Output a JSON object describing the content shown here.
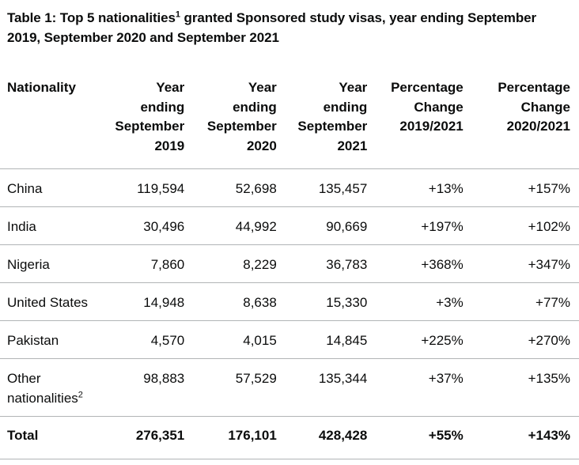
{
  "caption": {
    "before": "Table 1: Top 5 nationalities",
    "footnote": "1",
    "after": " granted Sponsored study visas, year ending September 2019, September 2020 and September 2021"
  },
  "headers": {
    "nationality": "Nationality",
    "y2019": [
      "Year",
      "ending",
      "September",
      "2019"
    ],
    "y2020": [
      "Year",
      "ending",
      "September",
      "2020"
    ],
    "y2021": [
      "Year",
      "ending",
      "September",
      "2021"
    ],
    "pc1921": [
      "Percentage",
      "Change",
      "2019/2021"
    ],
    "pc2021": [
      "Percentage",
      "Change",
      "2020/2021"
    ]
  },
  "rows": [
    {
      "nationality": "China",
      "y2019": "119,594",
      "y2020": "52,698",
      "y2021": "135,457",
      "pc1921": "+13%",
      "pc2021": "+157%"
    },
    {
      "nationality": "India",
      "y2019": "30,496",
      "y2020": "44,992",
      "y2021": "90,669",
      "pc1921": "+197%",
      "pc2021": "+102%"
    },
    {
      "nationality": "Nigeria",
      "y2019": "7,860",
      "y2020": "8,229",
      "y2021": "36,783",
      "pc1921": "+368%",
      "pc2021": "+347%"
    },
    {
      "nationality": "United States",
      "y2019": "14,948",
      "y2020": "8,638",
      "y2021": "15,330",
      "pc1921": "+3%",
      "pc2021": "+77%"
    },
    {
      "nationality": "Pakistan",
      "y2019": "4,570",
      "y2020": "4,015",
      "y2021": "14,845",
      "pc1921": "+225%",
      "pc2021": "+270%"
    },
    {
      "nationality": "Other nationalities",
      "footnote": "2",
      "y2019": "98,883",
      "y2020": "57,529",
      "y2021": "135,344",
      "pc1921": "+37%",
      "pc2021": "+135%"
    }
  ],
  "total": {
    "label": "Total",
    "y2019": "276,351",
    "y2020": "176,101",
    "y2021": "428,428",
    "pc1921": "+55%",
    "pc2021": "+143%"
  }
}
